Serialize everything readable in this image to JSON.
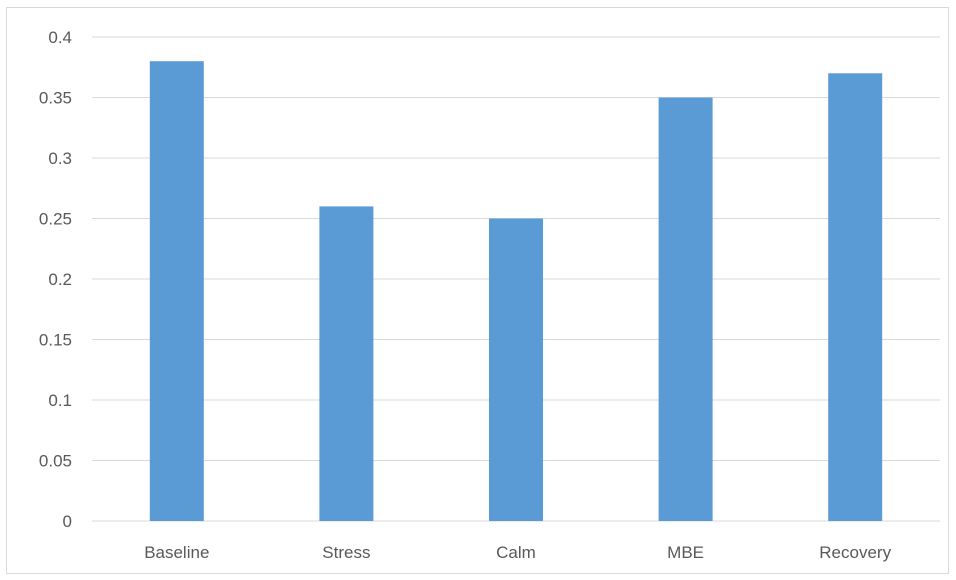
{
  "chart_data": {
    "type": "bar",
    "title": "",
    "xlabel": "",
    "ylabel": "",
    "categories": [
      "Baseline",
      "Stress",
      "Calm",
      "MBE",
      "Recovery"
    ],
    "values": [
      0.38,
      0.26,
      0.25,
      0.35,
      0.37
    ],
    "ylim": [
      0,
      0.4
    ],
    "yticks": [
      "0",
      "0.05",
      "0.1",
      "0.15",
      "0.2",
      "0.25",
      "0.3",
      "0.35",
      "0.4"
    ],
    "grid": true,
    "legend": "none",
    "bar_color": "#5b9bd5",
    "grid_color": "#d9d9d9"
  }
}
